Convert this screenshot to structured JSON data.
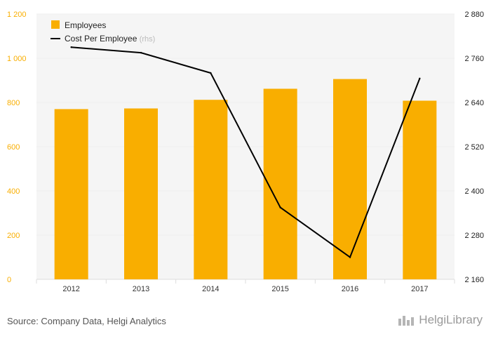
{
  "chart_data": {
    "type": "bar",
    "categories": [
      "2012",
      "2013",
      "2014",
      "2015",
      "2016",
      "2017"
    ],
    "series": [
      {
        "name": "Employees",
        "kind": "bar",
        "axis": "left",
        "values": [
          770,
          773,
          812,
          862,
          906,
          808
        ]
      },
      {
        "name": "Cost Per Employee",
        "kind": "line",
        "axis": "right",
        "values": [
          2790,
          2775,
          2720,
          2355,
          2220,
          2705
        ]
      }
    ],
    "legend": [
      {
        "label": "Employees",
        "suffix": ""
      },
      {
        "label": "Cost Per Employee",
        "suffix": "(rhs)"
      }
    ],
    "y_left": {
      "ylim": [
        0,
        1200
      ],
      "ticks": [
        "1 200",
        "1 000",
        "800",
        "600",
        "400",
        "200",
        "0"
      ],
      "tick_values": [
        1200,
        1000,
        800,
        600,
        400,
        200,
        0
      ]
    },
    "y_right": {
      "ylim": [
        2160,
        2880
      ],
      "ticks": [
        "2 880",
        "2 760",
        "2 640",
        "2 520",
        "2 400",
        "2 280",
        "2 160"
      ],
      "tick_values": [
        2880,
        2760,
        2640,
        2520,
        2400,
        2280,
        2160
      ]
    },
    "legend_position": "top-left",
    "grid": true,
    "colors": {
      "bar": "#F9AE00",
      "line": "#000000",
      "left_axis": "#F9AE00",
      "right_axis": "#222222",
      "grid": "#eeeeee",
      "plot_bg": "#f5f5f5"
    }
  },
  "footer": {
    "source": "Source: Company Data, Helgi Analytics",
    "brand": "HelgiLibrary"
  },
  "icons": {
    "brand": "helgi-building-icon"
  }
}
